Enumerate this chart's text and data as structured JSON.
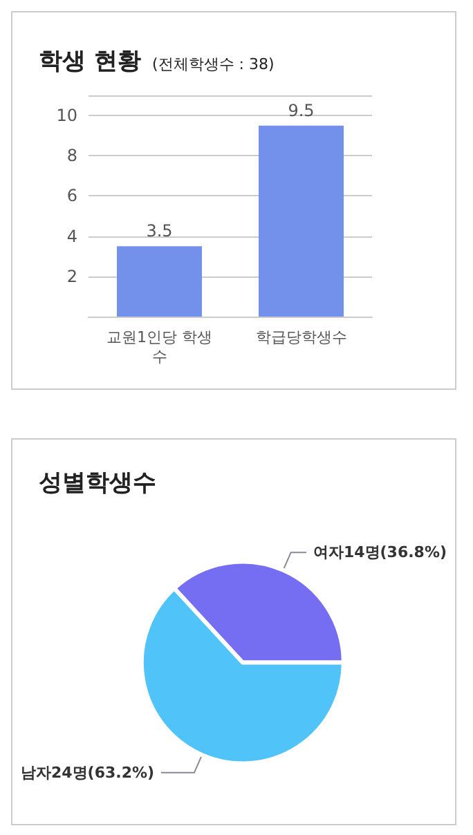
{
  "chart_data": [
    {
      "type": "bar",
      "title": "학생 현황",
      "subtitle": "(전체학생수 : 38)",
      "categories": [
        "교원1인당 학생수",
        "학급당학생수"
      ],
      "values": [
        3.5,
        9.5
      ],
      "color": "#7391ea",
      "ylim": [
        0,
        11
      ],
      "yticks": [
        {
          "value": 0,
          "label": null
        },
        2,
        4,
        6,
        8,
        10,
        {
          "value": 11,
          "label": null
        }
      ],
      "grid": "y",
      "data_labels": true,
      "legend": false
    },
    {
      "type": "pie",
      "title": "성별학생수",
      "categories": [
        "여자14명(36.8%)",
        "남자24명(63.2%)"
      ],
      "values": [
        14,
        24
      ],
      "colors": [
        "#766ef2",
        "#50c4f8"
      ],
      "legend": false
    }
  ]
}
